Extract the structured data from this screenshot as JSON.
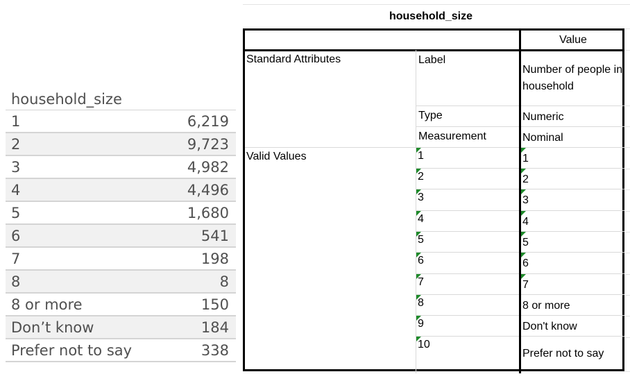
{
  "frequency_table": {
    "title": "household_size",
    "rows": [
      {
        "label": "1",
        "count": "6,219"
      },
      {
        "label": "2",
        "count": "9,723"
      },
      {
        "label": "3",
        "count": "4,982"
      },
      {
        "label": "4",
        "count": "4,496"
      },
      {
        "label": "5",
        "count": "1,680"
      },
      {
        "label": "6",
        "count": "541"
      },
      {
        "label": "7",
        "count": "198"
      },
      {
        "label": "8",
        "count": "8"
      },
      {
        "label": "8 or more",
        "count": "150"
      },
      {
        "label": "Don’t know",
        "count": "184"
      },
      {
        "label": "Prefer not to say",
        "count": "338"
      }
    ]
  },
  "dictionary": {
    "title": "household_size",
    "value_header": "Value",
    "standard_attributes_label": "Standard Attributes",
    "attributes": [
      {
        "name": "Label",
        "value": "Number of people in household"
      },
      {
        "name": "Type",
        "value": "Numeric"
      },
      {
        "name": "Measurement",
        "value": "Nominal"
      }
    ],
    "valid_values_label": "Valid Values",
    "valid_values": [
      {
        "code": "1",
        "label": "1"
      },
      {
        "code": "2",
        "label": "2"
      },
      {
        "code": "3",
        "label": "3"
      },
      {
        "code": "4",
        "label": "4"
      },
      {
        "code": "5",
        "label": "5"
      },
      {
        "code": "6",
        "label": "6"
      },
      {
        "code": "7",
        "label": "7"
      },
      {
        "code": "8",
        "label": "8 or more"
      },
      {
        "code": "9",
        "label": "Don't know"
      },
      {
        "code": "10",
        "label": "Prefer not to say"
      }
    ],
    "marker_color": "#1e8a2a"
  }
}
